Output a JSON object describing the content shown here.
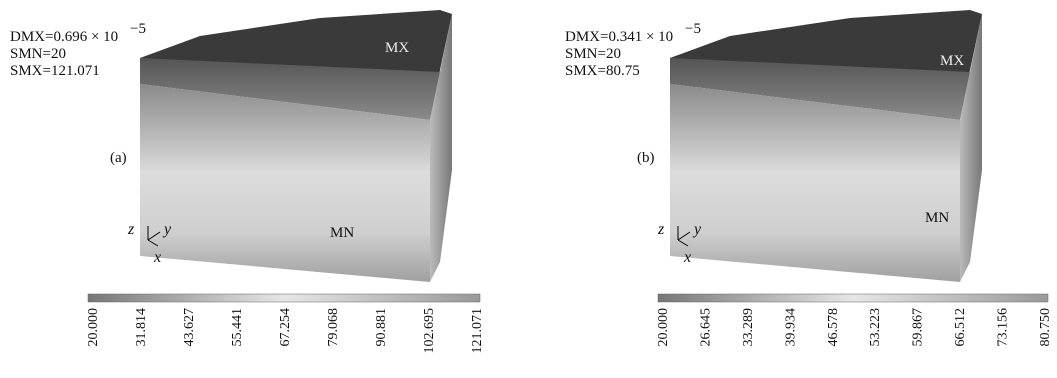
{
  "panels": [
    {
      "label": "(a)",
      "dmx": "DMX=0.696 × 10",
      "dmx_exponent": "−5",
      "smn": "SMN=20",
      "smx": "SMX=121.071",
      "max_marker": "MX",
      "min_marker": "MN",
      "axes": [
        "z",
        "y",
        "x"
      ],
      "colorbar_ticks": [
        "20.000",
        "31.814",
        "43.627",
        "55.441",
        "67.254",
        "79.068",
        "90.881",
        "102.695",
        "121.071"
      ]
    },
    {
      "label": "(b)",
      "dmx": "DMX=0.341 × 10",
      "dmx_exponent": "−5",
      "smn": "SMN=20",
      "smx": "SMX=80.75",
      "max_marker": "MX",
      "min_marker": "MN",
      "axes": [
        "z",
        "y",
        "x"
      ],
      "colorbar_ticks": [
        "20.000",
        "26.645",
        "33.289",
        "39.934",
        "46.578",
        "53.223",
        "59.867",
        "66.512",
        "73.156",
        "80.750"
      ]
    }
  ]
}
